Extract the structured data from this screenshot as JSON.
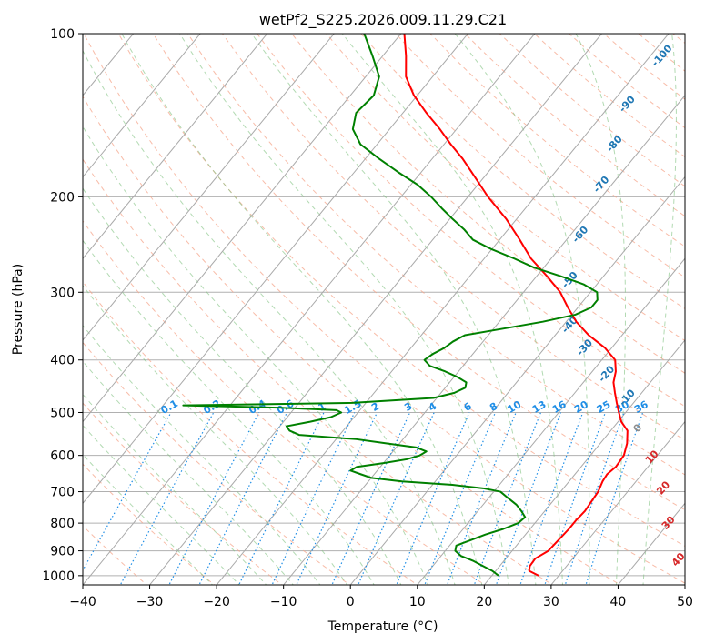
{
  "chart_data": {
    "type": "line",
    "subtype": "skew-t log-p diagram",
    "title": "wetPf2_S225.2026.009.11.29.C21",
    "xlabel": "Temperature (°C)",
    "ylabel": "Pressure (hPa)",
    "xlim": [
      -40,
      50
    ],
    "ylim_pressure": [
      1040,
      100
    ],
    "x_ticks": [
      -40,
      -30,
      -20,
      -10,
      0,
      10,
      20,
      30,
      40,
      50
    ],
    "y_ticks": [
      100,
      200,
      300,
      400,
      500,
      600,
      700,
      800,
      900,
      1000
    ],
    "grid": true,
    "skew_isotherms_c": [
      -140,
      -130,
      -120,
      -110,
      -100,
      -90,
      -80,
      -70,
      -60,
      -50,
      -40,
      -30,
      -20,
      -10,
      0,
      10,
      20,
      30,
      40,
      50
    ],
    "dry_adiabat_labels": [
      "-100",
      "-90",
      "-80",
      "-70",
      "-60",
      "-50",
      "-40",
      "-30",
      "-20",
      "-10",
      "0",
      "10",
      "20",
      "30",
      "40"
    ],
    "dry_adiabat_label_values": [
      -100,
      -90,
      -80,
      -70,
      -60,
      -50,
      -40,
      -30,
      -20,
      -10,
      0,
      10,
      20,
      30,
      40
    ],
    "dry_adiabat_label_points": [
      {
        "value": -100,
        "t": -18.2,
        "p": 110
      },
      {
        "value": -90,
        "t": -17.5,
        "p": 135
      },
      {
        "value": -80,
        "t": -14.5,
        "p": 160
      },
      {
        "value": -70,
        "t": -11.5,
        "p": 190
      },
      {
        "value": -60,
        "t": -8.5,
        "p": 235
      },
      {
        "value": -50,
        "t": -4.5,
        "p": 285
      },
      {
        "value": -40,
        "t": 1.0,
        "p": 345
      },
      {
        "value": -30,
        "t": 6.0,
        "p": 380
      },
      {
        "value": -20,
        "t": 12.5,
        "p": 425
      },
      {
        "value": -10,
        "t": 18.5,
        "p": 470
      },
      {
        "value": 0,
        "t": 23.8,
        "p": 535
      },
      {
        "value": 10,
        "t": 29.5,
        "p": 605
      },
      {
        "value": 20,
        "t": 35.0,
        "p": 690
      },
      {
        "value": 30,
        "t": 40.0,
        "p": 800
      },
      {
        "value": 40,
        "t": 46.0,
        "p": 935
      }
    ],
    "mixing_ratio_labels": [
      "0.1",
      "0.2",
      "0.4",
      "0.6",
      "1",
      "1.5",
      "2",
      "3",
      "4",
      "6",
      "8",
      "10",
      "13",
      "16",
      "20",
      "25",
      "30",
      "36"
    ],
    "mixing_ratio_values": [
      0.1,
      0.2,
      0.4,
      0.6,
      1,
      1.5,
      2,
      3,
      4,
      6,
      8,
      10,
      13,
      16,
      20,
      25,
      30,
      36
    ],
    "series": [
      {
        "name": "temperature",
        "color": "#ff0000",
        "points": [
          [
            1000,
            27.0
          ],
          [
            980,
            25.0
          ],
          [
            960,
            24.5
          ],
          [
            930,
            24.4
          ],
          [
            900,
            25.4
          ],
          [
            860,
            25.6
          ],
          [
            820,
            25.8
          ],
          [
            790,
            25.8
          ],
          [
            760,
            26.0
          ],
          [
            730,
            25.8
          ],
          [
            700,
            25.6
          ],
          [
            670,
            25.0
          ],
          [
            650,
            24.8
          ],
          [
            630,
            25.2
          ],
          [
            600,
            25.0
          ],
          [
            570,
            24.0
          ],
          [
            540,
            22.5
          ],
          [
            520,
            20.5
          ],
          [
            500,
            19.0
          ],
          [
            480,
            17.5
          ],
          [
            460,
            16.0
          ],
          [
            440,
            14.5
          ],
          [
            420,
            13.5
          ],
          [
            400,
            12.0
          ],
          [
            380,
            9.0
          ],
          [
            360,
            5.0
          ],
          [
            340,
            1.5
          ],
          [
            320,
            -1.5
          ],
          [
            300,
            -4.5
          ],
          [
            280,
            -8.5
          ],
          [
            260,
            -13.0
          ],
          [
            240,
            -17.0
          ],
          [
            220,
            -21.5
          ],
          [
            200,
            -27.0
          ],
          [
            180,
            -32.5
          ],
          [
            170,
            -35.5
          ],
          [
            160,
            -39.0
          ],
          [
            150,
            -42.5
          ],
          [
            140,
            -46.5
          ],
          [
            130,
            -50.5
          ],
          [
            120,
            -54.0
          ],
          [
            110,
            -56.5
          ],
          [
            100,
            -59.5
          ]
        ]
      },
      {
        "name": "dewpoint",
        "color": "#008000",
        "points": [
          [
            1000,
            21.0
          ],
          [
            980,
            19.5
          ],
          [
            960,
            17.5
          ],
          [
            940,
            15.5
          ],
          [
            920,
            13.0
          ],
          [
            900,
            11.5
          ],
          [
            880,
            11.0
          ],
          [
            860,
            12.5
          ],
          [
            840,
            14.0
          ],
          [
            820,
            16.0
          ],
          [
            800,
            17.5
          ],
          [
            780,
            17.8
          ],
          [
            760,
            16.5
          ],
          [
            740,
            15.0
          ],
          [
            720,
            13.0
          ],
          [
            700,
            11.0
          ],
          [
            690,
            8.0
          ],
          [
            680,
            3.0
          ],
          [
            670,
            -5.0
          ],
          [
            660,
            -10.0
          ],
          [
            650,
            -12.0
          ],
          [
            640,
            -14.0
          ],
          [
            630,
            -13.5
          ],
          [
            620,
            -10.0
          ],
          [
            610,
            -7.0
          ],
          [
            600,
            -5.5
          ],
          [
            590,
            -5.0
          ],
          [
            580,
            -7.0
          ],
          [
            570,
            -12.0
          ],
          [
            560,
            -17.0
          ],
          [
            550,
            -26.0
          ],
          [
            540,
            -28.0
          ],
          [
            530,
            -29.0
          ],
          [
            520,
            -26.0
          ],
          [
            510,
            -23.5
          ],
          [
            500,
            -22.5
          ],
          [
            495,
            -23.5
          ],
          [
            490,
            -32.0
          ],
          [
            485,
            -47.0
          ],
          [
            480,
            -22.0
          ],
          [
            470,
            -10.5
          ],
          [
            460,
            -8.0
          ],
          [
            450,
            -7.0
          ],
          [
            440,
            -7.5
          ],
          [
            430,
            -9.5
          ],
          [
            420,
            -12.0
          ],
          [
            410,
            -15.0
          ],
          [
            400,
            -16.5
          ],
          [
            390,
            -16.0
          ],
          [
            380,
            -15.0
          ],
          [
            370,
            -14.5
          ],
          [
            360,
            -13.5
          ],
          [
            350,
            -8.5
          ],
          [
            340,
            -3.5
          ],
          [
            330,
            0.5
          ],
          [
            320,
            2.0
          ],
          [
            310,
            2.0
          ],
          [
            300,
            1.0
          ],
          [
            290,
            -2.0
          ],
          [
            280,
            -6.5
          ],
          [
            270,
            -11.5
          ],
          [
            260,
            -15.5
          ],
          [
            250,
            -20.0
          ],
          [
            240,
            -24.0
          ],
          [
            230,
            -26.5
          ],
          [
            220,
            -29.5
          ],
          [
            210,
            -32.5
          ],
          [
            200,
            -35.5
          ],
          [
            190,
            -39.0
          ],
          [
            180,
            -43.5
          ],
          [
            170,
            -48.0
          ],
          [
            160,
            -52.5
          ],
          [
            150,
            -55.5
          ],
          [
            140,
            -57.0
          ],
          [
            130,
            -56.5
          ],
          [
            120,
            -58.0
          ],
          [
            110,
            -61.5
          ],
          [
            100,
            -65.5
          ]
        ]
      }
    ]
  }
}
